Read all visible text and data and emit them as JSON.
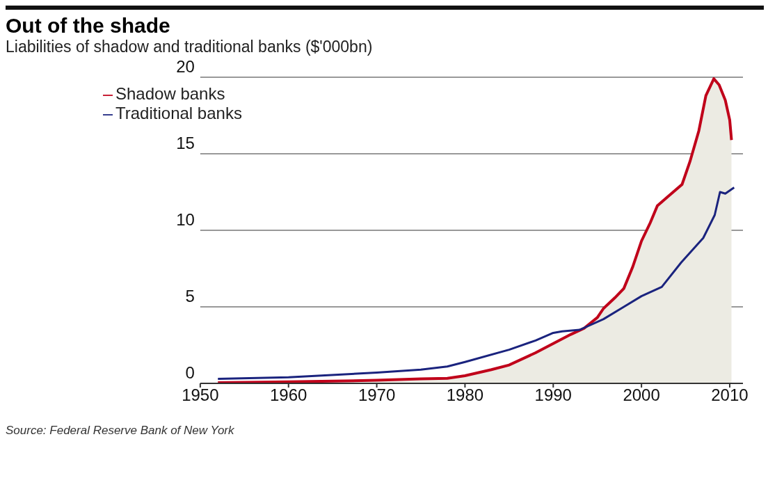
{
  "chart_data": {
    "type": "line",
    "title": "Out of the shade",
    "subtitle": "Liabilities of shadow and traditional banks ($'000bn)",
    "annotations": [
      "Source: Federal Reserve Bank of New York"
    ],
    "xlim": [
      1950,
      2011.5
    ],
    "xticks": [
      1950,
      1960,
      1970,
      1980,
      1990,
      2000,
      2010
    ],
    "ylim": [
      0,
      20
    ],
    "yticks": [
      0,
      5,
      10,
      15,
      20
    ],
    "grid": "y",
    "legend": "top left",
    "series": [
      {
        "name": "Shadow banks",
        "type": "area",
        "color": "#c0001a",
        "x": [
          1952,
          1960,
          1970,
          1975,
          1978,
          1980,
          1983,
          1985,
          1988,
          1990,
          1992,
          1993.5,
          1995,
          1995.7,
          1997,
          1998,
          1999,
          2000,
          2001,
          2001.8,
          2003,
          2004.6,
          2005.5,
          2006.5,
          2007.3,
          2008.2,
          2008.8,
          2009.5,
          2010,
          2010.2
        ],
        "values": [
          0.05,
          0.1,
          0.2,
          0.3,
          0.33,
          0.5,
          0.9,
          1.2,
          2.0,
          2.6,
          3.2,
          3.6,
          4.3,
          4.9,
          5.6,
          6.2,
          7.6,
          9.3,
          10.5,
          11.6,
          12.2,
          13.0,
          14.5,
          16.5,
          18.8,
          19.9,
          19.5,
          18.5,
          17.2,
          15.9
        ]
      },
      {
        "name": "Traditional banks",
        "type": "line",
        "color": "#1a237e",
        "x": [
          1952,
          1960,
          1970,
          1975,
          1978,
          1980,
          1985,
          1988,
          1990,
          1991,
          1993,
          1995.7,
          1998,
          2000,
          2002.3,
          2004.5,
          2007,
          2008.3,
          2008.9,
          2009.5,
          2010.5
        ],
        "values": [
          0.3,
          0.4,
          0.7,
          0.9,
          1.1,
          1.4,
          2.2,
          2.8,
          3.3,
          3.4,
          3.5,
          4.2,
          5.0,
          5.7,
          6.3,
          7.9,
          9.5,
          11.0,
          12.5,
          12.4,
          12.8
        ]
      }
    ]
  }
}
